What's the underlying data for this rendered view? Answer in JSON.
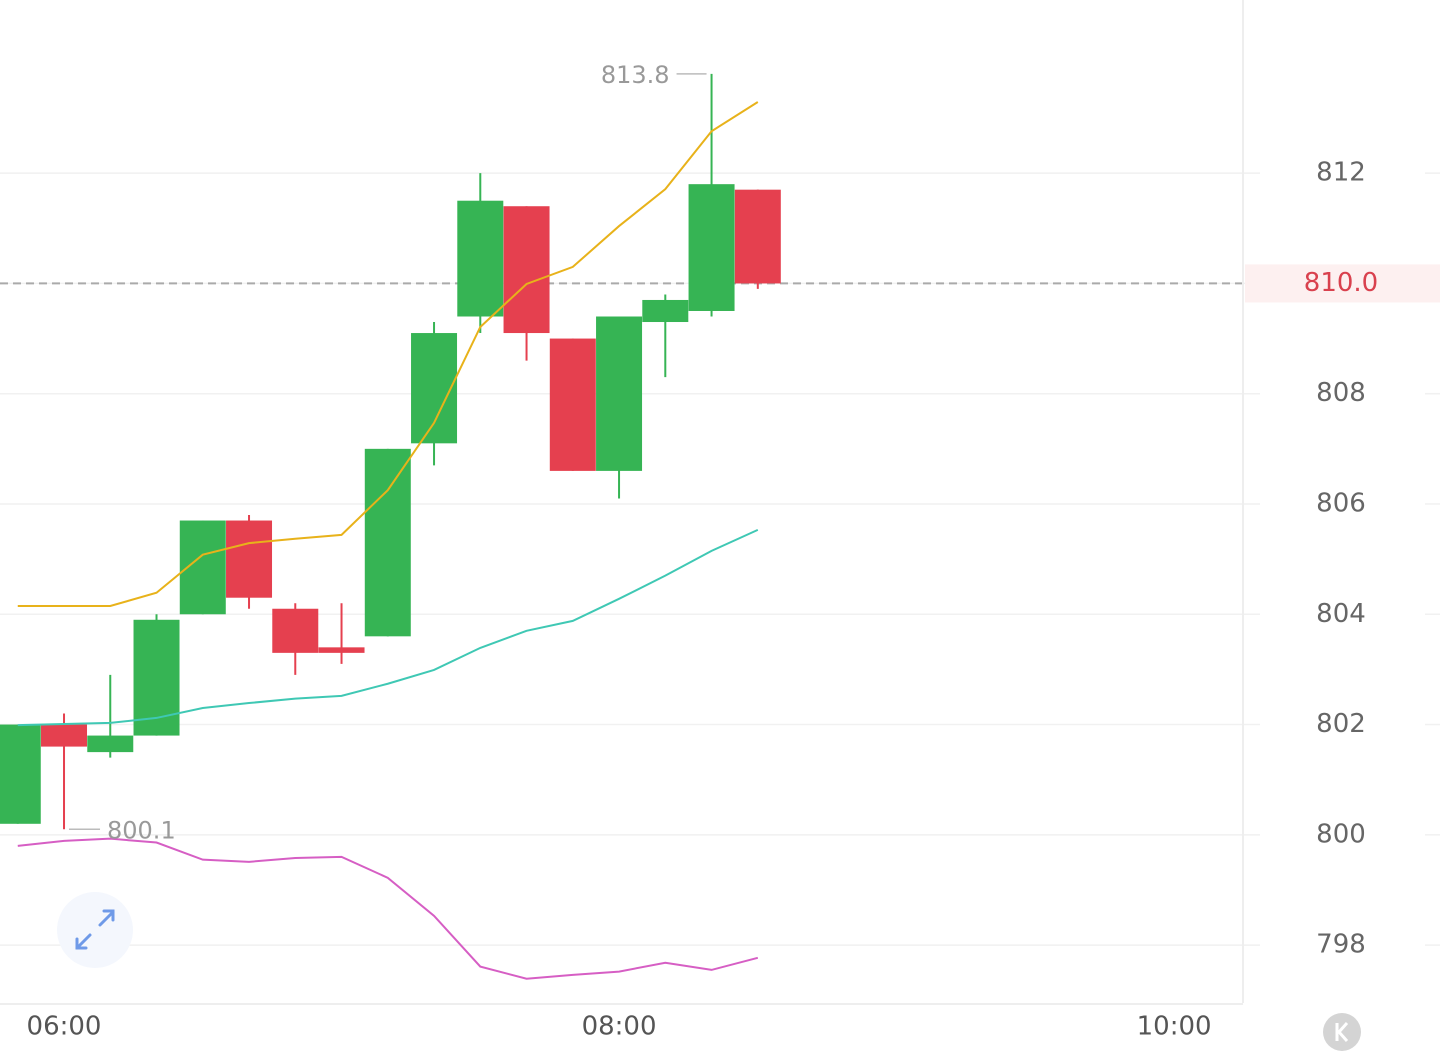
{
  "chart_data": {
    "type": "candlestick",
    "x": [
      350,
      360,
      370,
      380,
      390,
      400,
      410,
      420,
      430,
      440,
      450,
      460,
      470,
      480,
      490,
      500,
      510
    ],
    "open": [
      800.2,
      802.0,
      801.5,
      801.8,
      804.0,
      805.7,
      804.1,
      803.4,
      803.6,
      807.1,
      809.4,
      811.4,
      809.0,
      806.6,
      809.3,
      809.5,
      811.7
    ],
    "high": [
      802.0,
      802.2,
      802.9,
      804.0,
      805.7,
      805.8,
      804.2,
      804.2,
      807.0,
      809.3,
      812.0,
      811.4,
      809.0,
      809.4,
      809.8,
      813.8,
      811.7
    ],
    "low": [
      800.2,
      800.1,
      801.4,
      801.8,
      804.0,
      804.1,
      802.9,
      803.1,
      803.6,
      806.7,
      809.1,
      808.6,
      806.6,
      806.1,
      808.3,
      809.4,
      809.9
    ],
    "close": [
      802.0,
      801.6,
      801.8,
      803.9,
      805.7,
      804.3,
      803.3,
      803.3,
      807.0,
      809.1,
      811.5,
      809.1,
      806.6,
      809.4,
      809.7,
      811.8,
      810.0
    ],
    "up_color": "#36b454",
    "down_color": "#e5404f",
    "series": [
      {
        "color": "#e8b21a",
        "values": [
          804.15,
          804.15,
          804.15,
          804.39,
          805.08,
          805.29,
          805.37,
          805.44,
          806.25,
          807.47,
          809.21,
          809.99,
          810.3,
          811.04,
          811.71,
          812.76,
          813.29
        ]
      },
      {
        "color": "#3fc8b4",
        "values": [
          801.99,
          802.01,
          802.03,
          802.12,
          802.3,
          802.39,
          802.47,
          802.52,
          802.74,
          802.99,
          803.39,
          803.7,
          803.88,
          804.28,
          804.7,
          805.15,
          805.53
        ]
      },
      {
        "color": "#d65ec4",
        "values": [
          799.8,
          799.89,
          799.93,
          799.86,
          799.55,
          799.51,
          799.58,
          799.6,
          799.22,
          798.53,
          797.61,
          797.39,
          797.46,
          797.52,
          797.68,
          797.55,
          797.77
        ]
      }
    ],
    "xlim": [
      346.16,
      614.9
    ],
    "xticks": [
      {
        "value": 360,
        "label": "06:00"
      },
      {
        "value": 480,
        "label": "08:00"
      },
      {
        "value": 600,
        "label": "10:00"
      }
    ],
    "ylim": [
      796.95,
      815.14
    ],
    "yticks": [
      798,
      800,
      802,
      804,
      806,
      808,
      810,
      812
    ],
    "grid": true,
    "max_marker": 813.8,
    "min_marker": 800.1,
    "last_price": {
      "value": 810,
      "label": "810.0"
    }
  }
}
